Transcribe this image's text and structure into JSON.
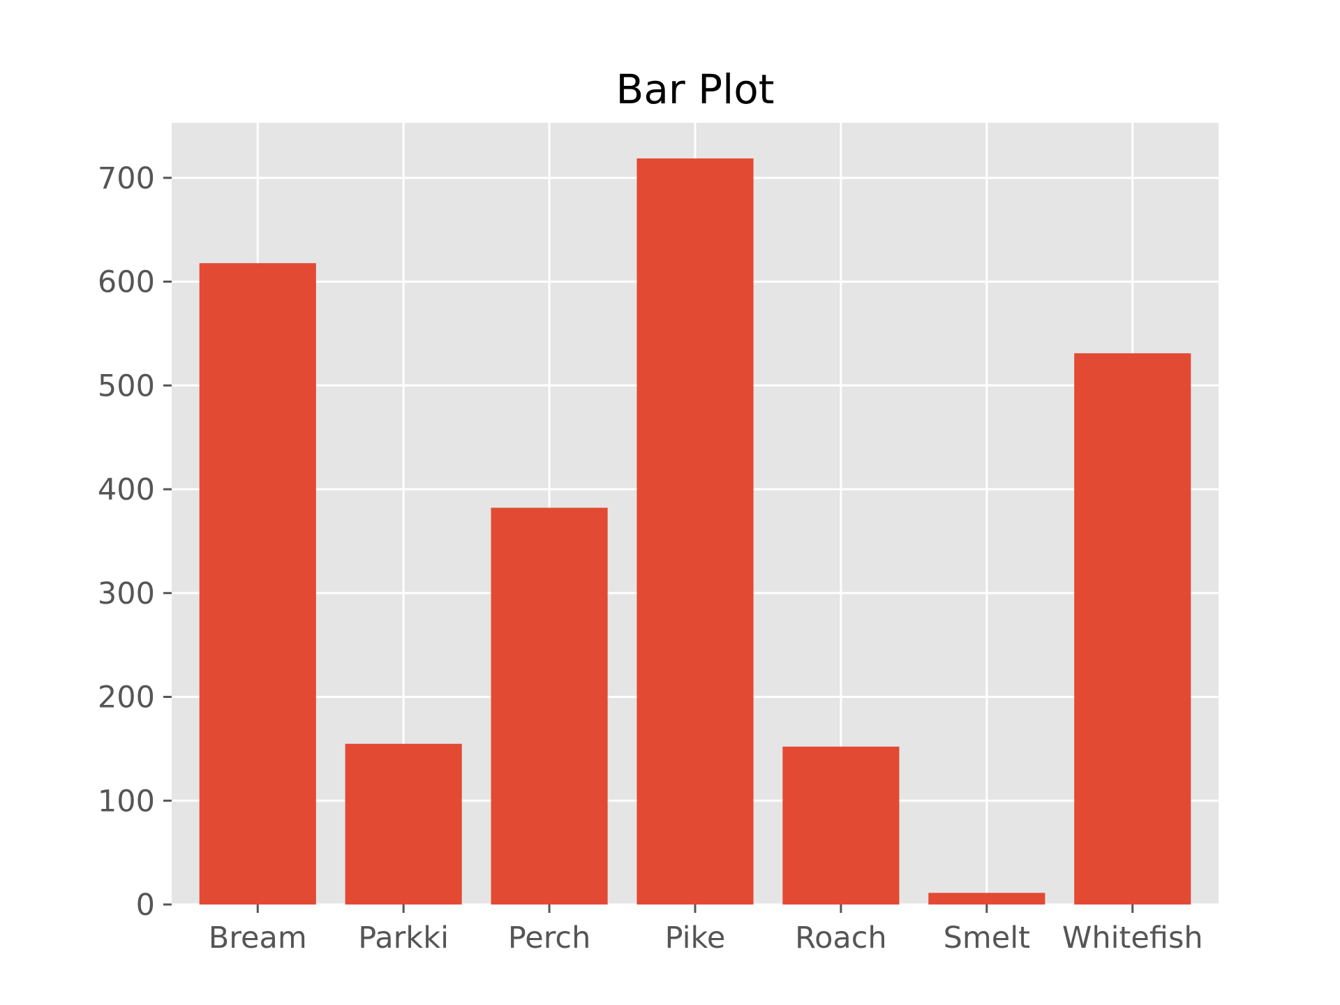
{
  "chart_data": {
    "type": "bar",
    "title": "Bar Plot",
    "xlabel": "",
    "ylabel": "",
    "categories": [
      "Bream",
      "Parkki",
      "Perch",
      "Pike",
      "Roach",
      "Smelt",
      "Whitefish"
    ],
    "values": [
      617.8,
      154.8,
      382.2,
      718.7,
      152.1,
      11.2,
      531.0
    ],
    "ylim": [
      0,
      753
    ],
    "yticks": [
      0,
      100,
      200,
      300,
      400,
      500,
      600,
      700
    ],
    "ytick_labels": [
      "0",
      "100",
      "200",
      "300",
      "400",
      "500",
      "600",
      "700"
    ],
    "grid": true,
    "legend": "none",
    "colors": {
      "bar": "#e24a33",
      "plot_background": "#e5e5e5",
      "grid": "#ffffff",
      "tick_label": "#555555",
      "title": "#000000"
    }
  }
}
